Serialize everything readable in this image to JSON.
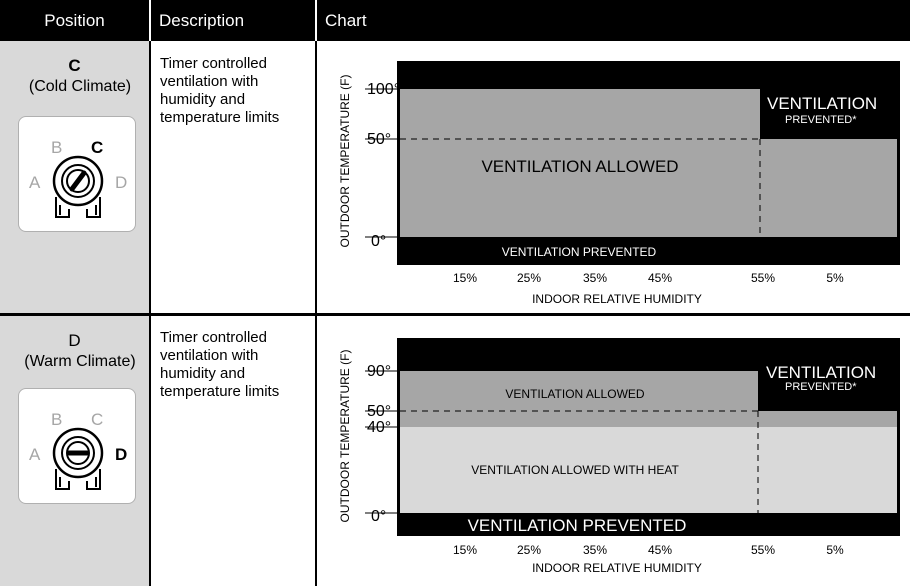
{
  "header": {
    "position": "Position",
    "description": "Description",
    "chart": "Chart"
  },
  "rows": [
    {
      "letter": "C",
      "climate": "(Cold Climate)",
      "description": "Timer controlled ventilation with humidity and temperature limits",
      "knob": {
        "labels": [
          "A",
          "B",
          "C",
          "D"
        ],
        "active": "C"
      }
    },
    {
      "letter": "D",
      "climate": "(Warm Climate)",
      "description": "Timer controlled ventilation with humidity and temperature limits",
      "knob": {
        "labels": [
          "A",
          "B",
          "C",
          "D"
        ],
        "active": "D"
      }
    }
  ],
  "chart_data": [
    {
      "type": "area",
      "ylabel": "OUTDOOR TEMPERATURE (F)",
      "xlabel": "INDOOR RELATIVE HUMIDITY",
      "x_ticks": [
        "15%",
        "25%",
        "35%",
        "45%",
        "55%",
        "5%"
      ],
      "y_ticks": [
        "100°",
        "50°",
        "0°"
      ],
      "regions": [
        {
          "label": "VENTILATION ALLOWED",
          "color": "#a6a6a6"
        },
        {
          "label": "VENTILATION",
          "sublabel": "PREVENTED*",
          "color": "#000000"
        },
        {
          "label": "VENTILATION PREVENTED",
          "color": "#000000"
        }
      ]
    },
    {
      "type": "area",
      "ylabel": "OUTDOOR TEMPERATURE (F)",
      "xlabel": "INDOOR RELATIVE HUMIDITY",
      "x_ticks": [
        "15%",
        "25%",
        "35%",
        "45%",
        "55%",
        "5%"
      ],
      "y_ticks": [
        "90°",
        "50°",
        "40°",
        "0°"
      ],
      "regions": [
        {
          "label": "VENTILATION ALLOWED",
          "color": "#a6a6a6"
        },
        {
          "label": "VENTILATION ALLOWED WITH HEAT",
          "color": "#d9d9d9"
        },
        {
          "label": "VENTILATION",
          "sublabel": "PREVENTED*",
          "color": "#000000"
        },
        {
          "label": "VENTILATION PREVENTED",
          "color": "#000000"
        }
      ]
    }
  ]
}
